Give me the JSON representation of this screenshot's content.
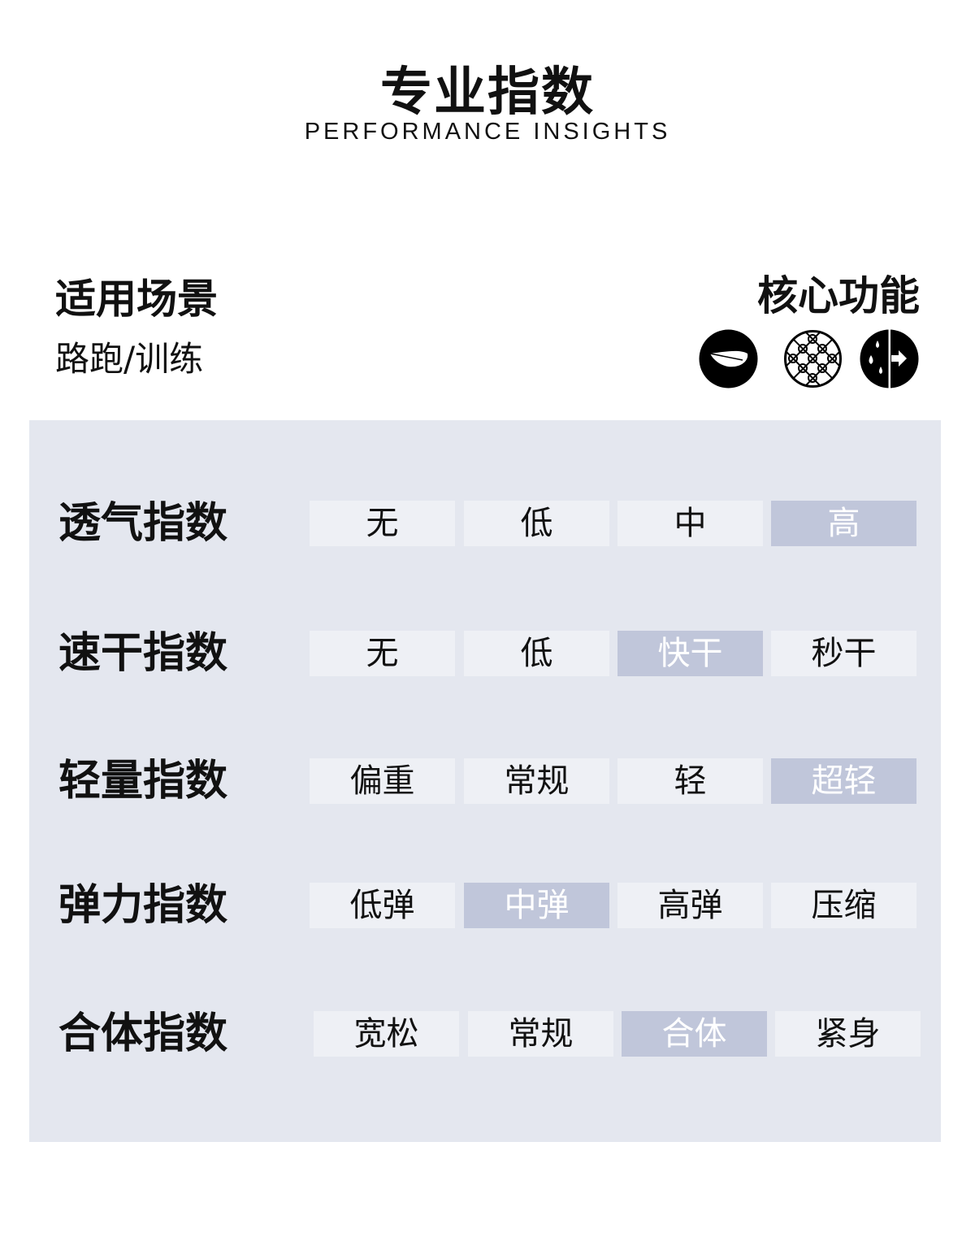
{
  "header": {
    "title": "专业指数",
    "subtitle": "PERFORMANCE INSIGHTS"
  },
  "scene": {
    "heading": "适用场景",
    "value": "路跑/训练"
  },
  "features": {
    "heading": "核心功能",
    "icons": [
      "feather-icon",
      "mesh-pattern-icon",
      "moisture-wicking-icon"
    ]
  },
  "colors": {
    "panel": "#e4e7ef",
    "cell": "#eef0f5",
    "selected": "#c0c6da"
  },
  "indices": [
    {
      "label": "透气指数",
      "options": [
        "无",
        "低",
        "中",
        "高"
      ],
      "selected": 3
    },
    {
      "label": "速干指数",
      "options": [
        "无",
        "低",
        "快干",
        "秒干"
      ],
      "selected": 2
    },
    {
      "label": "轻量指数",
      "options": [
        "偏重",
        "常规",
        "轻",
        "超轻"
      ],
      "selected": 3
    },
    {
      "label": "弹力指数",
      "options": [
        "低弹",
        "中弹",
        "高弹",
        "压缩"
      ],
      "selected": 1
    },
    {
      "label": "合体指数",
      "options": [
        "宽松",
        "常规",
        "合体",
        "紧身"
      ],
      "selected": 2
    }
  ]
}
